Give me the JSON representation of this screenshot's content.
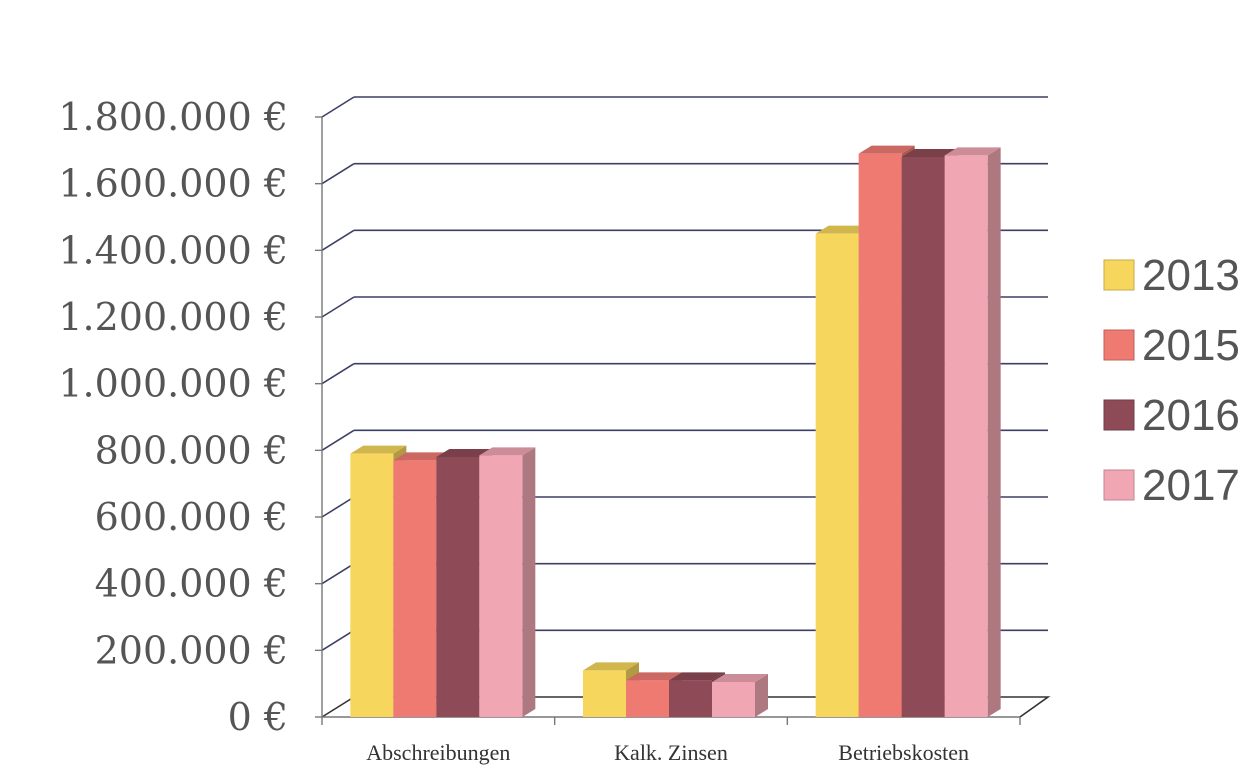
{
  "chart_data": {
    "type": "bar",
    "categories": [
      "Abschreibungen",
      "Kalk. Zinsen",
      "Betriebskosten"
    ],
    "series": [
      {
        "name": "2013",
        "color": "#f6d65c",
        "values": [
          790000,
          140000,
          1450000
        ]
      },
      {
        "name": "2015",
        "color": "#ee7a72",
        "values": [
          770000,
          110000,
          1690000
        ]
      },
      {
        "name": "2016",
        "color": "#8e4b57",
        "values": [
          780000,
          110000,
          1680000
        ]
      },
      {
        "name": "2017",
        "color": "#f1a6b3",
        "values": [
          785000,
          105000,
          1685000
        ]
      }
    ],
    "y_ticks": [
      "0 €",
      "200.000 €",
      "400.000 €",
      "600.000 €",
      "800.000 €",
      "1.000.000 €",
      "1.200.000 €",
      "1.400.000 €",
      "1.600.000 €",
      "1.800.000 €"
    ],
    "ylim": [
      0,
      1800000
    ],
    "title": "",
    "xlabel": "",
    "ylabel": "",
    "grid": true,
    "legend": "right",
    "style": "3d-clustered-column"
  }
}
